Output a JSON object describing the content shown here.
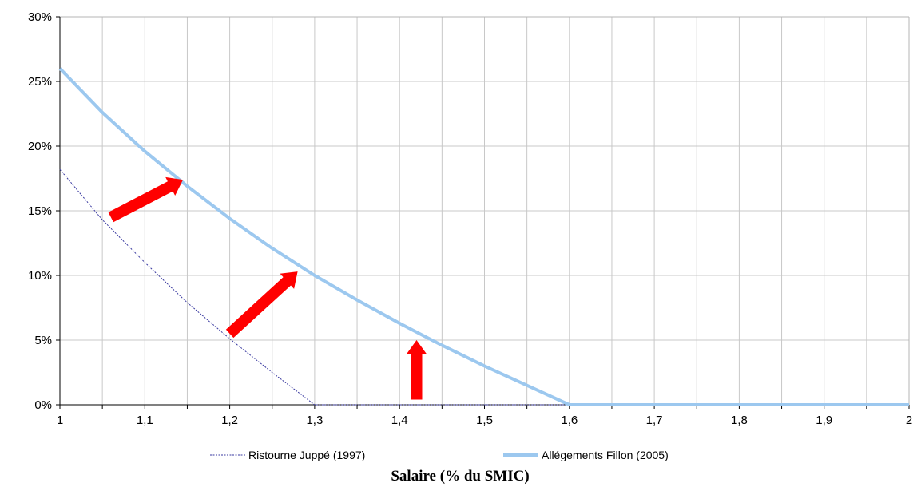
{
  "chart_data": {
    "type": "line",
    "title": "",
    "xlabel": "Salaire (% du SMIC)",
    "ylabel": "",
    "xlim": [
      1,
      2
    ],
    "ylim": [
      0,
      30
    ],
    "x_ticks": [
      1,
      1.1,
      1.2,
      1.3,
      1.4,
      1.5,
      1.6,
      1.7,
      1.8,
      1.9,
      2
    ],
    "x_tick_labels": [
      "1",
      "1,1",
      "1,2",
      "1,3",
      "1,4",
      "1,5",
      "1,6",
      "1,7",
      "1,8",
      "1,9",
      "2"
    ],
    "y_ticks": [
      0,
      5,
      10,
      15,
      20,
      25,
      30
    ],
    "y_tick_labels": [
      "0%",
      "5%",
      "10%",
      "15%",
      "20%",
      "25%",
      "30%"
    ],
    "grid": true,
    "legend_position": "bottom",
    "series": [
      {
        "name": "Ristourne Juppé (1997)",
        "style": "dotted",
        "color": "#3a3aa0",
        "x": [
          1,
          1.05,
          1.1,
          1.15,
          1.2,
          1.25,
          1.3,
          2
        ],
        "y": [
          18.2,
          14.3,
          11.0,
          7.9,
          5.1,
          2.5,
          0,
          0
        ]
      },
      {
        "name": "Allégements Fillon (2005)",
        "style": "solid",
        "color": "#9cc8ef",
        "x": [
          1,
          1.05,
          1.1,
          1.15,
          1.2,
          1.25,
          1.3,
          1.35,
          1.4,
          1.45,
          1.5,
          1.55,
          1.6,
          2
        ],
        "y": [
          26,
          22.6,
          19.6,
          16.9,
          14.4,
          12.1,
          10.0,
          8.1,
          6.3,
          4.6,
          3.0,
          1.5,
          0,
          0
        ]
      }
    ],
    "annotations": [
      {
        "type": "arrow",
        "color": "#ff0000",
        "from": [
          1.06,
          14.5
        ],
        "to": [
          1.145,
          17.4
        ]
      },
      {
        "type": "arrow",
        "color": "#ff0000",
        "from": [
          1.2,
          5.5
        ],
        "to": [
          1.28,
          10.3
        ]
      },
      {
        "type": "arrow",
        "color": "#ff0000",
        "from": [
          1.42,
          0.4
        ],
        "to": [
          1.42,
          5.0
        ]
      }
    ]
  }
}
